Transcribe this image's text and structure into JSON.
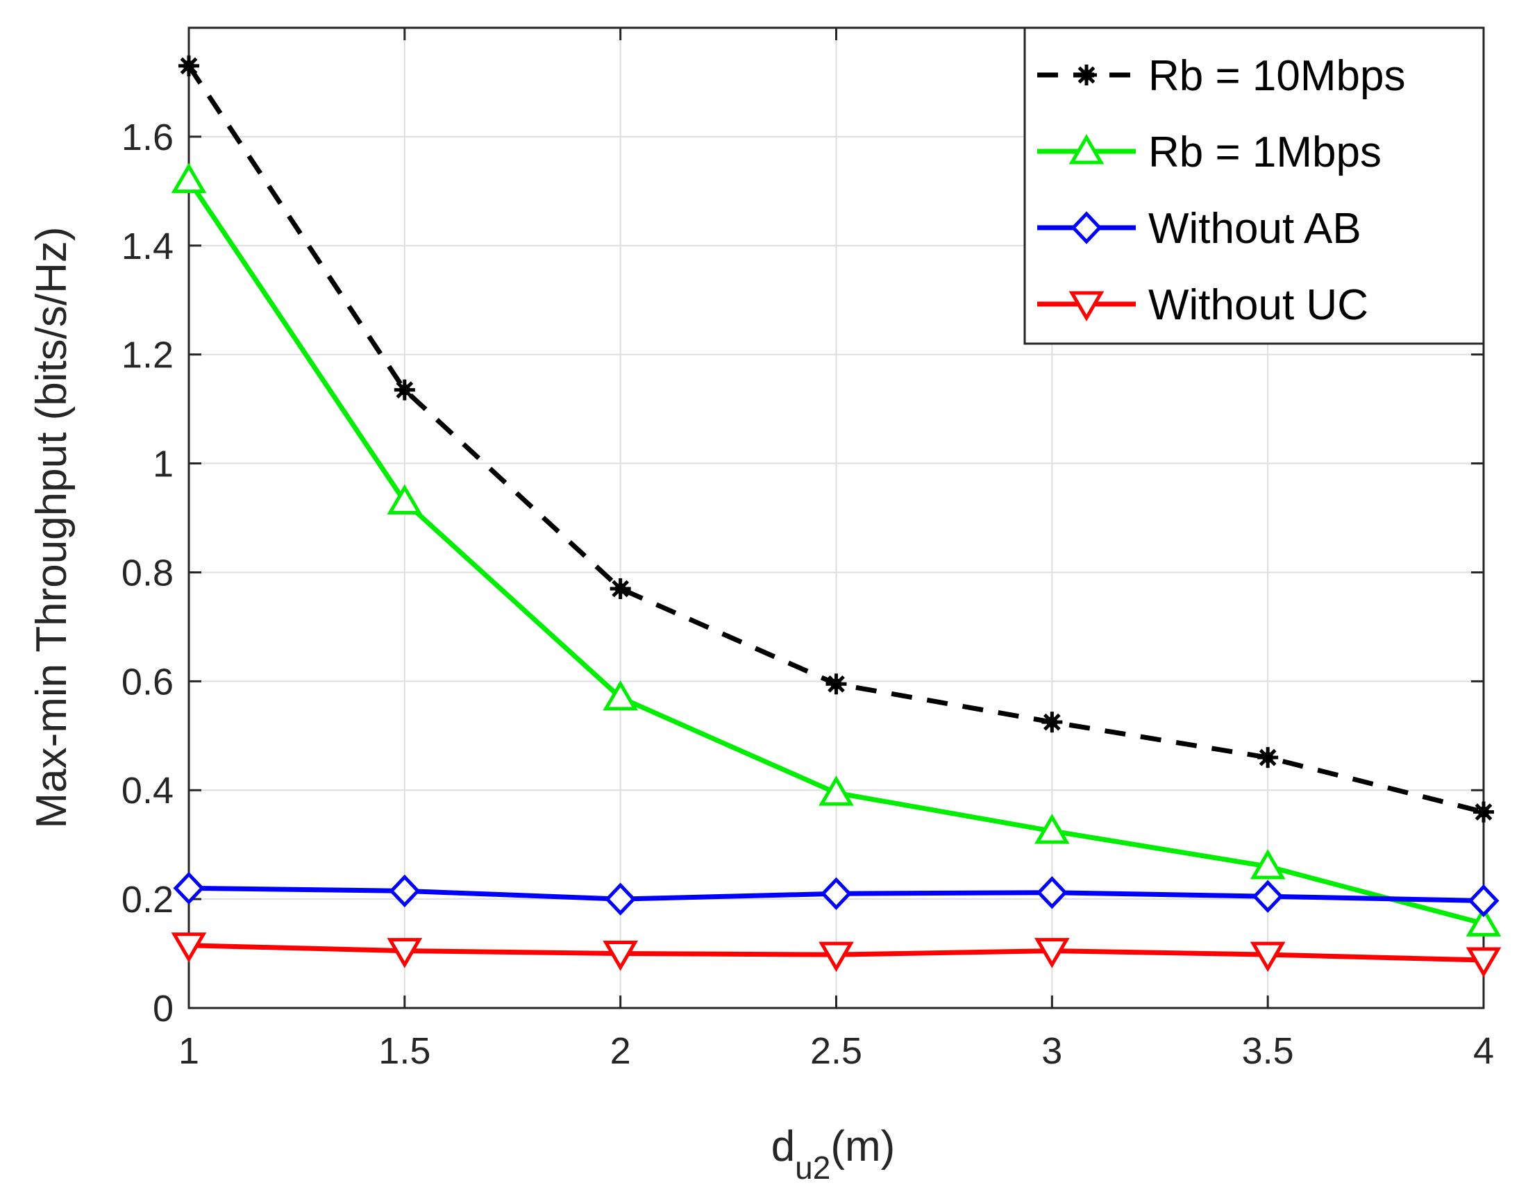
{
  "chart_data": {
    "type": "line",
    "title": "",
    "xlabel": {
      "main": "d",
      "subscript": "u2",
      "suffix": "(m)"
    },
    "ylabel": "Max-min Throughput (bits/s/Hz)",
    "x": [
      1,
      1.5,
      2,
      2.5,
      3,
      3.5,
      4
    ],
    "xlim": [
      1,
      4
    ],
    "ylim": [
      0,
      1.8
    ],
    "xticks": [
      1,
      1.5,
      2,
      2.5,
      3,
      3.5,
      4
    ],
    "xtick_labels": [
      "1",
      "1.5",
      "2",
      "2.5",
      "3",
      "3.5",
      "4"
    ],
    "yticks": [
      0,
      0.2,
      0.4,
      0.6,
      0.8,
      1,
      1.2,
      1.4,
      1.6
    ],
    "ytick_labels": [
      "0",
      "0.2",
      "0.4",
      "0.6",
      "0.8",
      "1",
      "1.2",
      "1.4",
      "1.6"
    ],
    "grid": true,
    "legend_position": "top-right",
    "series": [
      {
        "name": "Rb = 10Mbps",
        "color": "#000000",
        "dash": "dashed",
        "marker": "asterisk",
        "values": [
          1.73,
          1.135,
          0.77,
          0.595,
          0.525,
          0.46,
          0.36
        ]
      },
      {
        "name": "Rb = 1Mbps",
        "color": "#00ee00",
        "dash": "solid",
        "marker": "triangle-up",
        "values": [
          1.52,
          0.93,
          0.57,
          0.395,
          0.325,
          0.26,
          0.155
        ]
      },
      {
        "name": "Without AB",
        "color": "#0000ff",
        "dash": "solid",
        "marker": "diamond",
        "values": [
          0.22,
          0.215,
          0.2,
          0.21,
          0.212,
          0.205,
          0.197
        ]
      },
      {
        "name": "Without UC",
        "color": "#ff0000",
        "dash": "solid",
        "marker": "triangle-down",
        "values": [
          0.115,
          0.105,
          0.1,
          0.098,
          0.105,
          0.098,
          0.088
        ]
      }
    ]
  }
}
